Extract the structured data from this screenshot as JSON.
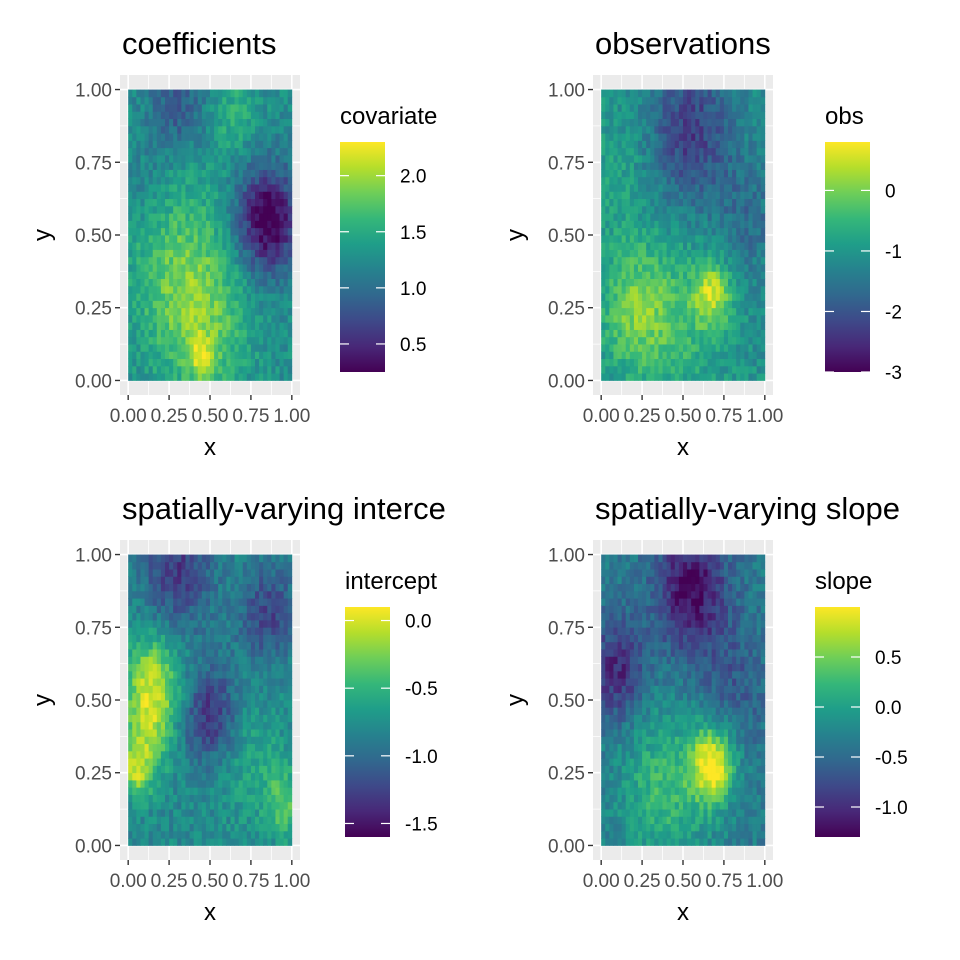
{
  "chart_data": [
    {
      "type": "heatmap",
      "panel_id": "coefficients",
      "title": "coefficients",
      "xlabel": "x",
      "ylabel": "y",
      "xlim": [
        0,
        1
      ],
      "ylim": [
        0,
        1
      ],
      "x_ticks": [
        "0.00",
        "0.25",
        "0.50",
        "0.75",
        "1.00"
      ],
      "y_ticks": [
        "0.00",
        "0.25",
        "0.50",
        "0.75",
        "1.00"
      ],
      "legend_title": "covariate",
      "value_range": [
        0.25,
        2.3
      ],
      "legend_ticks": [
        {
          "label": "0.5",
          "value": 0.5
        },
        {
          "label": "1.0",
          "value": 1.0
        },
        {
          "label": "1.5",
          "value": 1.5
        },
        {
          "label": "2.0",
          "value": 2.0
        }
      ],
      "field_blobs": [
        {
          "x": 0.85,
          "y": 0.55,
          "s": 0.13,
          "a": -1.1
        },
        {
          "x": 0.45,
          "y": 0.22,
          "s": 0.2,
          "a": 0.55
        },
        {
          "x": 0.25,
          "y": 0.45,
          "s": 0.22,
          "a": 0.35
        },
        {
          "x": 0.3,
          "y": 0.95,
          "s": 0.12,
          "a": -0.45
        },
        {
          "x": 0.1,
          "y": 0.65,
          "s": 0.12,
          "a": -0.2
        },
        {
          "x": 0.45,
          "y": 0.08,
          "s": 0.05,
          "a": 0.6
        },
        {
          "x": 0.65,
          "y": 0.92,
          "s": 0.1,
          "a": 0.3
        }
      ],
      "field_base": 1.25
    },
    {
      "type": "heatmap",
      "panel_id": "observations",
      "title": "observations",
      "xlabel": "x",
      "ylabel": "y",
      "xlim": [
        0,
        1
      ],
      "ylim": [
        0,
        1
      ],
      "x_ticks": [
        "0.00",
        "0.25",
        "0.50",
        "0.75",
        "1.00"
      ],
      "y_ticks": [
        "0.00",
        "0.25",
        "0.50",
        "0.75",
        "1.00"
      ],
      "legend_title": "obs",
      "value_range": [
        -3.0,
        0.8
      ],
      "legend_ticks": [
        {
          "label": "-3",
          "value": -3
        },
        {
          "label": "-2",
          "value": -2
        },
        {
          "label": "-1",
          "value": -1
        },
        {
          "label": "0",
          "value": 0
        }
      ],
      "field_blobs": [
        {
          "x": 0.55,
          "y": 0.85,
          "s": 0.18,
          "a": -1.2
        },
        {
          "x": 0.68,
          "y": 0.3,
          "s": 0.08,
          "a": 1.4
        },
        {
          "x": 0.2,
          "y": 0.25,
          "s": 0.15,
          "a": 0.9
        },
        {
          "x": 0.45,
          "y": 0.2,
          "s": 0.2,
          "a": 0.6
        },
        {
          "x": 0.9,
          "y": 0.55,
          "s": 0.15,
          "a": -0.5
        },
        {
          "x": 0.1,
          "y": 0.7,
          "s": 0.15,
          "a": 0.3
        }
      ],
      "field_base": -1.1
    },
    {
      "type": "heatmap",
      "panel_id": "intercept",
      "title": "spatially-varying interce",
      "xlabel": "x",
      "ylabel": "y",
      "xlim": [
        0,
        1
      ],
      "ylim": [
        0,
        1
      ],
      "x_ticks": [
        "0.00",
        "0.25",
        "0.50",
        "0.75",
        "1.00"
      ],
      "y_ticks": [
        "0.00",
        "0.25",
        "0.50",
        "0.75",
        "1.00"
      ],
      "legend_title": "intercept",
      "value_range": [
        -1.6,
        0.1
      ],
      "legend_ticks": [
        {
          "label": "-1.5",
          "value": -1.5
        },
        {
          "label": "-1.0",
          "value": -1.0
        },
        {
          "label": "-0.5",
          "value": -0.5
        },
        {
          "label": "0.0",
          "value": 0.0
        }
      ],
      "field_blobs": [
        {
          "x": 0.15,
          "y": 0.55,
          "s": 0.12,
          "a": 0.75
        },
        {
          "x": 0.1,
          "y": 0.35,
          "s": 0.1,
          "a": 0.45
        },
        {
          "x": 0.5,
          "y": 0.45,
          "s": 0.12,
          "a": -0.55
        },
        {
          "x": 0.85,
          "y": 0.8,
          "s": 0.12,
          "a": -0.45
        },
        {
          "x": 0.3,
          "y": 0.95,
          "s": 0.15,
          "a": -0.5
        },
        {
          "x": 0.75,
          "y": 0.3,
          "s": 0.15,
          "a": 0.2
        },
        {
          "x": 0.95,
          "y": 0.15,
          "s": 0.08,
          "a": 0.45
        },
        {
          "x": 0.05,
          "y": 0.25,
          "s": 0.06,
          "a": 0.5
        }
      ],
      "field_base": -0.8
    },
    {
      "type": "heatmap",
      "panel_id": "slope",
      "title": "spatially-varying slope",
      "xlabel": "x",
      "ylabel": "y",
      "xlim": [
        0,
        1
      ],
      "ylim": [
        0,
        1
      ],
      "x_ticks": [
        "0.00",
        "0.25",
        "0.50",
        "0.75",
        "1.00"
      ],
      "y_ticks": [
        "0.00",
        "0.25",
        "0.50",
        "0.75",
        "1.00"
      ],
      "legend_title": "slope",
      "value_range": [
        -1.3,
        1.0
      ],
      "legend_ticks": [
        {
          "label": "-1.0",
          "value": -1.0
        },
        {
          "label": "-0.5",
          "value": -0.5
        },
        {
          "label": "0.0",
          "value": 0.0
        },
        {
          "label": "0.5",
          "value": 0.5
        }
      ],
      "field_blobs": [
        {
          "x": 0.55,
          "y": 0.88,
          "s": 0.15,
          "a": -0.9
        },
        {
          "x": 0.1,
          "y": 0.6,
          "s": 0.12,
          "a": -0.7
        },
        {
          "x": 0.68,
          "y": 0.28,
          "s": 0.09,
          "a": 1.3
        },
        {
          "x": 0.4,
          "y": 0.2,
          "s": 0.2,
          "a": 0.6
        },
        {
          "x": 0.8,
          "y": 0.55,
          "s": 0.15,
          "a": -0.3
        }
      ],
      "field_base": -0.35
    }
  ]
}
